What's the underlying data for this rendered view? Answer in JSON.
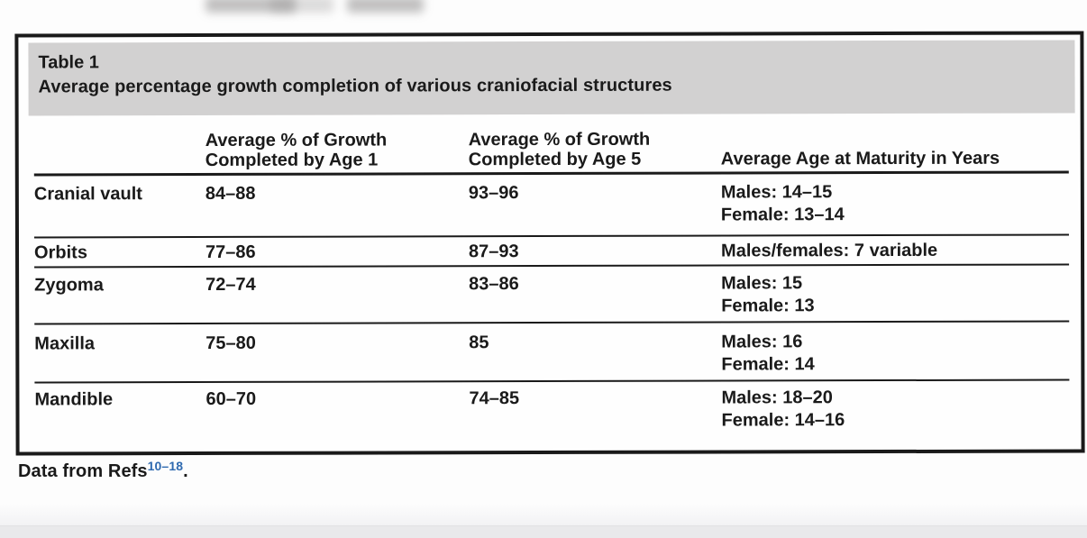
{
  "document": {
    "table_label": "Table 1",
    "table_title": "Average percentage growth completion of various craniofacial structures",
    "headers": {
      "structure": "",
      "age1_line1": "Average % of Growth",
      "age1_line2": "Completed by Age 1",
      "age5_line1": "Average % of Growth",
      "age5_line2": "Completed by Age 5",
      "maturity": "Average Age at Maturity in Years"
    },
    "rows": [
      {
        "structure": "Cranial vault",
        "age1": "84–88",
        "age5": "93–96",
        "maturity_line1": "Males: 14–15",
        "maturity_line2": "Female: 13–14"
      },
      {
        "structure": "Orbits",
        "age1": "77–86",
        "age5": "87–93",
        "maturity_line1": "Males/females: 7 variable",
        "maturity_line2": ""
      },
      {
        "structure": "Zygoma",
        "age1": "72–74",
        "age5": "83–86",
        "maturity_line1": "Males: 15",
        "maturity_line2": "Female: 13"
      },
      {
        "structure": "Maxilla",
        "age1": "75–80",
        "age5": "85",
        "maturity_line1": "Males: 16",
        "maturity_line2": "Female: 14"
      },
      {
        "structure": "Mandible",
        "age1": "60–70",
        "age5": "74–85",
        "maturity_line1": "Males: 18–20",
        "maturity_line2": "Female: 14–16"
      }
    ],
    "footnote": {
      "prefix": "Data from Refs",
      "refs": "10–18",
      "suffix": "."
    }
  },
  "colors": {
    "caption_band": "#d2d1d1",
    "table_border": "#1a1a1a",
    "text": "#1a1a1a",
    "reference_link": "#2f6ab0",
    "bottom_bar": "#e9e9eb",
    "page_background": "#fdfdfd"
  }
}
